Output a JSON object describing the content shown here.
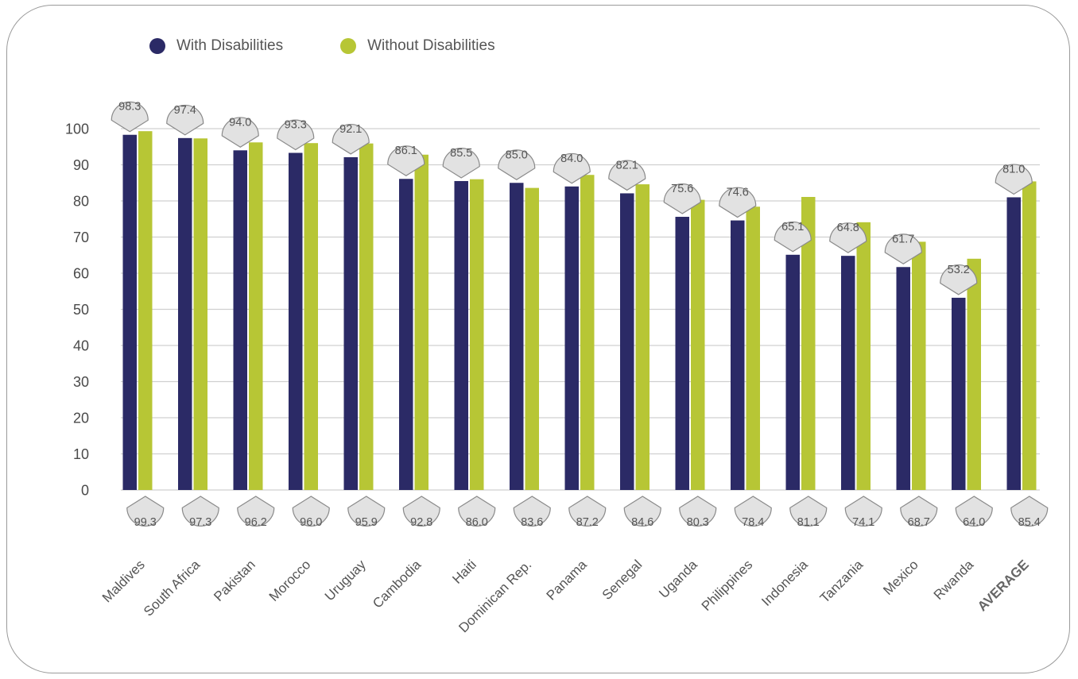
{
  "colors": {
    "with": "#2b2a66",
    "without": "#b7c635",
    "grid": "#d0d0d0",
    "pin_fill": "#e2e2e2",
    "pin_stroke": "#8a8a8a"
  },
  "legend": {
    "with_label": "With Disabilities",
    "without_label": "Without Disabilities"
  },
  "chart_data": {
    "type": "bar",
    "categories": [
      "Maldives",
      "South Africa",
      "Pakistan",
      "Morocco",
      "Uruguay",
      "Cambodia",
      "Haiti",
      "Dominican Rep.",
      "Panama",
      "Senegal",
      "Uganda",
      "Philippines",
      "Indonesia",
      "Tanzania",
      "Mexico",
      "Rwanda",
      "AVERAGE"
    ],
    "series": [
      {
        "name": "With Disabilities",
        "values": [
          98.3,
          97.4,
          94.0,
          93.3,
          92.1,
          86.1,
          85.5,
          85.0,
          84.0,
          82.1,
          75.6,
          74.6,
          65.1,
          64.8,
          61.7,
          53.2,
          81.0
        ],
        "labels": [
          "98.3",
          "97.4",
          "94.0",
          "93.3",
          "92.1",
          "86.1",
          "85.5",
          "85.0",
          "84.0",
          "82.1",
          "75.6",
          "74.6",
          "65.1",
          "64.8",
          "61.7",
          "53.2",
          "81.0"
        ]
      },
      {
        "name": "Without Disabilities",
        "values": [
          99.3,
          97.3,
          96.2,
          96.0,
          95.9,
          92.8,
          86.0,
          83.6,
          87.2,
          84.6,
          80.3,
          78.4,
          81.1,
          74.1,
          68.7,
          64.0,
          85.4
        ],
        "labels": [
          "99.3",
          "97.3",
          "96.2",
          "96.0",
          "95.9",
          "92.8",
          "86.0",
          "83.6",
          "87.2",
          "84.6",
          "80.3",
          "78.4",
          "81.1",
          "74.1",
          "68.7",
          "64.0",
          "85.4"
        ]
      }
    ],
    "y_ticks": [
      "0",
      "10",
      "20",
      "30",
      "40",
      "50",
      "60",
      "70",
      "80",
      "90",
      "100"
    ],
    "ylim": [
      0,
      100
    ],
    "grid": true,
    "legend_position": "top-left"
  }
}
